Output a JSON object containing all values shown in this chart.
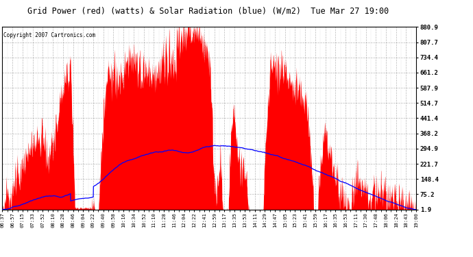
{
  "title": "Grid Power (red) (watts) & Solar Radiation (blue) (W/m2)  Tue Mar 27 19:00",
  "copyright": "Copyright 2007 Cartronics.com",
  "background_color": "#ffffff",
  "plot_bg_color": "#ffffff",
  "grid_color": "#888888",
  "red_fill_color": "#ff0000",
  "blue_line_color": "#0000ff",
  "y_right_ticks": [
    880.9,
    807.7,
    734.4,
    661.2,
    587.9,
    514.7,
    441.4,
    368.2,
    294.9,
    221.7,
    148.4,
    75.2,
    1.9
  ],
  "y_min": 1.9,
  "y_max": 880.9,
  "x_labels": [
    "06:37",
    "06:57",
    "07:15",
    "07:33",
    "07:52",
    "08:10",
    "08:28",
    "08:46",
    "09:04",
    "09:22",
    "09:40",
    "09:58",
    "10:16",
    "10:34",
    "10:52",
    "11:10",
    "11:28",
    "11:46",
    "12:04",
    "12:22",
    "12:41",
    "12:59",
    "13:17",
    "13:35",
    "13:53",
    "14:11",
    "14:29",
    "14:47",
    "15:05",
    "15:23",
    "15:41",
    "15:59",
    "16:17",
    "16:35",
    "16:53",
    "17:11",
    "17:30",
    "17:48",
    "18:06",
    "18:24",
    "18:43",
    "19:00"
  ],
  "n_points": 2000
}
